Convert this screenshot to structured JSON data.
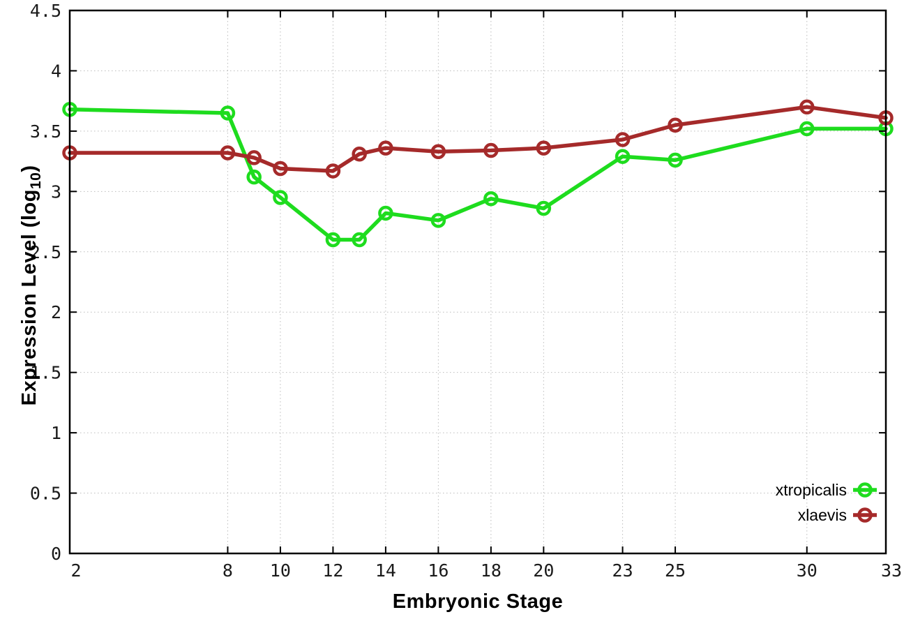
{
  "chart_data": {
    "type": "line",
    "title": "",
    "xlabel": "Embryonic Stage",
    "ylabel": "Expression Level (log10)",
    "ylabel_parts": {
      "main": "Expression Level (log",
      "sub": "10",
      "close": ")"
    },
    "x": [
      2,
      8,
      9,
      10,
      12,
      13,
      14,
      16,
      18,
      20,
      23,
      25,
      30,
      33
    ],
    "series": [
      {
        "name": "xtropicalis",
        "color": "#1edc1e",
        "values": [
          3.68,
          3.65,
          3.12,
          2.95,
          2.6,
          2.6,
          2.82,
          2.76,
          2.94,
          2.86,
          3.29,
          3.26,
          3.52,
          3.52
        ]
      },
      {
        "name": "xlaevis",
        "color": "#a52a2a",
        "values": [
          3.32,
          3.32,
          3.28,
          3.19,
          3.17,
          3.31,
          3.36,
          3.33,
          3.34,
          3.36,
          3.43,
          3.55,
          3.7,
          3.61
        ]
      }
    ],
    "xlim": [
      2,
      33
    ],
    "ylim": [
      0,
      4.5
    ],
    "x_tick_values": [
      2,
      8,
      10,
      12,
      14,
      16,
      18,
      20,
      23,
      25,
      30,
      33
    ],
    "x_tick_labels": [
      "2",
      "8",
      "10",
      "12",
      "14",
      "16",
      "18",
      "20",
      "23",
      "25",
      "30",
      "33"
    ],
    "y_tick_values": [
      0,
      0.5,
      1,
      1.5,
      2,
      2.5,
      3,
      3.5,
      4,
      4.5
    ],
    "y_tick_labels": [
      "0",
      "0.5",
      "1",
      "1.5",
      "2",
      "2.5",
      "3",
      "3.5",
      "4",
      "4.5"
    ],
    "grid": true,
    "legend_position": "inside-bottom-right",
    "marker": "open-circle",
    "background_color": "#ffffff",
    "axis_color": "#000000",
    "grid_color": "#bcbcbc"
  }
}
